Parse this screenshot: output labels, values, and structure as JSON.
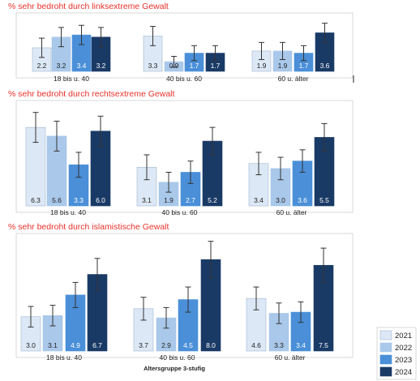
{
  "chart_data": [
    {
      "type": "bar",
      "title": "% sehr bedroht durch linksextreme Gewalt",
      "categories": [
        "18 bis u. 40",
        "40 bis u. 60",
        "60 u. älter"
      ],
      "series": [
        {
          "name": "2021",
          "values": [
            2.2,
            3.3,
            1.9
          ]
        },
        {
          "name": "2022",
          "values": [
            3.2,
            0.9,
            1.9
          ]
        },
        {
          "name": "2023",
          "values": [
            3.4,
            1.7,
            1.7
          ]
        },
        {
          "name": "2024",
          "values": [
            3.2,
            1.7,
            3.6
          ]
        }
      ],
      "errors": [
        [
          0.9,
          0.9,
          0.8
        ],
        [
          0.9,
          0.5,
          0.8
        ],
        [
          0.9,
          0.7,
          0.7
        ],
        [
          0.9,
          0.7,
          0.9
        ]
      ],
      "ylim": [
        0,
        5
      ],
      "grid": false
    },
    {
      "type": "bar",
      "title": "% sehr bedroht durch rechtsextreme Gewalt",
      "categories": [
        "18 bis u. 40",
        "40 bis u. 60",
        "60 u. älter"
      ],
      "series": [
        {
          "name": "2021",
          "values": [
            6.3,
            3.1,
            3.4
          ]
        },
        {
          "name": "2022",
          "values": [
            5.6,
            1.9,
            3.0
          ]
        },
        {
          "name": "2023",
          "values": [
            3.3,
            2.7,
            3.6
          ]
        },
        {
          "name": "2024",
          "values": [
            6.0,
            5.2,
            5.5
          ]
        }
      ],
      "errors": [
        [
          1.2,
          1.0,
          0.9
        ],
        [
          1.2,
          0.8,
          0.9
        ],
        [
          1.0,
          0.9,
          0.9
        ],
        [
          1.2,
          1.1,
          1.1
        ]
      ],
      "ylim": [
        0,
        8
      ],
      "grid": false
    },
    {
      "type": "bar",
      "title": "% sehr bedroht durch islamistische Gewalt",
      "categories": [
        "18 bis u. 40",
        "40 bis u. 60",
        "60 u. älter"
      ],
      "series": [
        {
          "name": "2021",
          "values": [
            3.0,
            3.7,
            4.6
          ]
        },
        {
          "name": "2022",
          "values": [
            3.1,
            2.9,
            3.3
          ]
        },
        {
          "name": "2023",
          "values": [
            4.9,
            4.5,
            3.4
          ]
        },
        {
          "name": "2024",
          "values": [
            6.7,
            8.0,
            7.5
          ]
        }
      ],
      "errors": [
        [
          0.9,
          1.0,
          1.0
        ],
        [
          0.9,
          0.9,
          0.9
        ],
        [
          1.1,
          1.1,
          0.9
        ],
        [
          1.4,
          1.6,
          1.5
        ]
      ],
      "ylim": [
        0,
        10
      ],
      "grid": false
    }
  ],
  "xlabel": "Altersgruppe 3-stufig",
  "legend": {
    "placement": "bottom-right",
    "items": [
      "2021",
      "2022",
      "2023",
      "2024"
    ]
  },
  "colors": {
    "title": "#e8322b",
    "series": [
      "#dce8f5",
      "#a9c8ea",
      "#4a8fd8",
      "#1a3a66"
    ],
    "frame": "#cfcfcf",
    "error_bar": "#333333"
  }
}
